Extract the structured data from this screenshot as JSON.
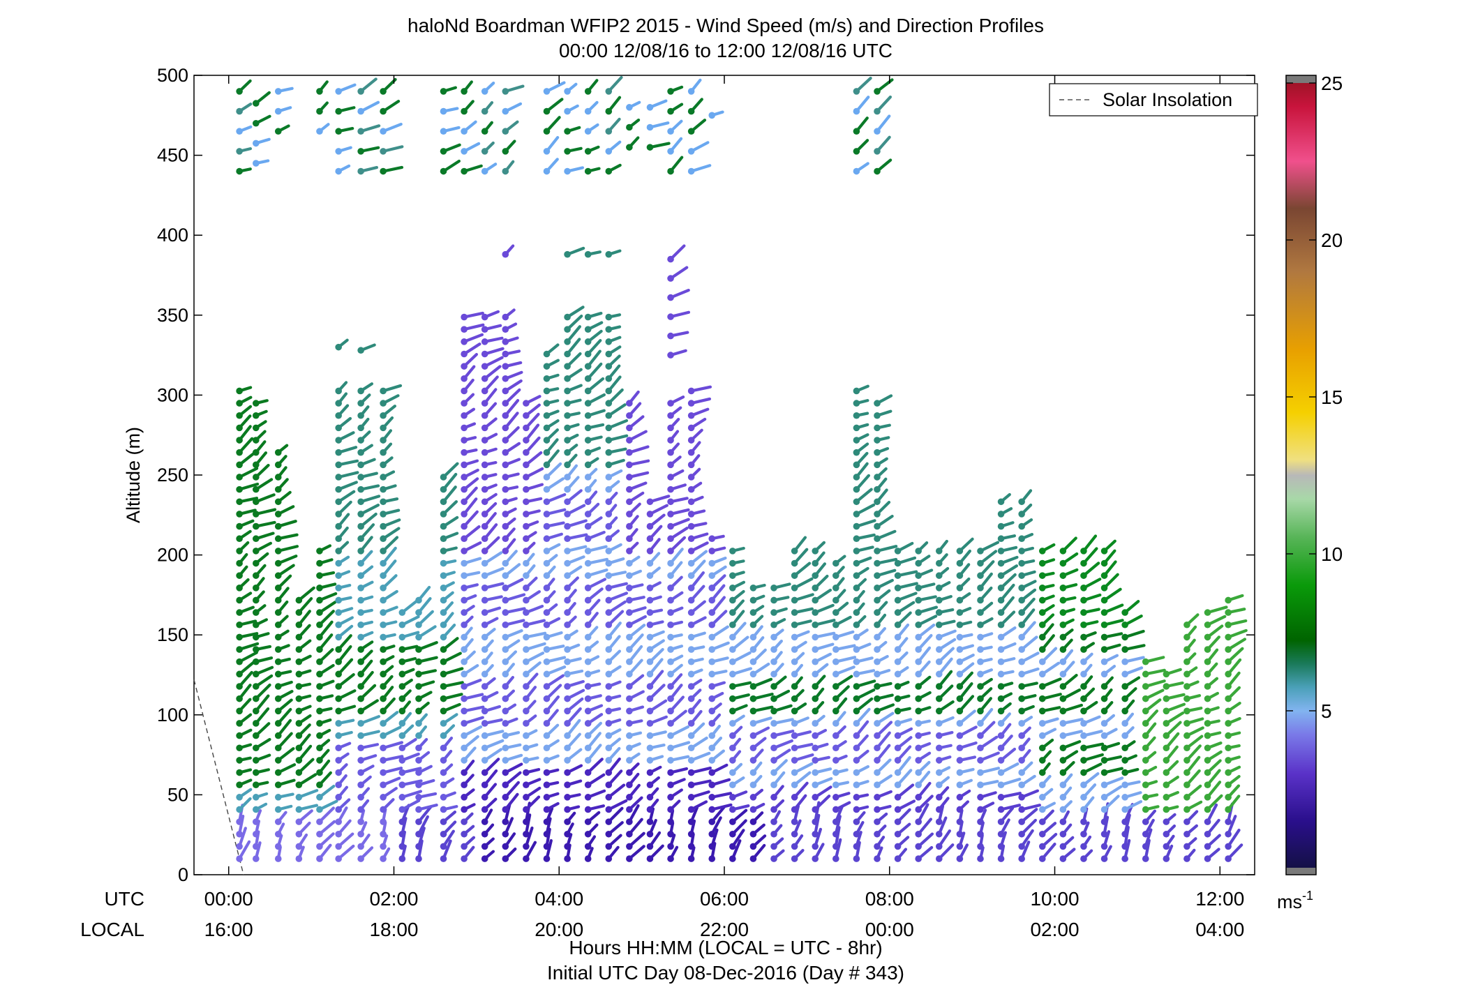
{
  "chart_data": {
    "type": "wind-barb-profile",
    "title": "haloNd Boardman WFIP2 2015 - Wind Speed (m/s) and Direction Profiles",
    "subtitle": "00:00 12/08/16 to 12:00 12/08/16  UTC",
    "ylabel": "Altitude (m)",
    "xlabel": "Hours HH:MM  (LOCAL = UTC - 8hr)",
    "xlabel2": "Initial UTC Day 08-Dec-2016 (Day # 343)",
    "utc_row_label": "UTC",
    "local_row_label": "LOCAL",
    "xlim": [
      -0.42,
      12.42
    ],
    "ylim": [
      0,
      500
    ],
    "y_ticks": [
      "0",
      "50",
      "100",
      "150",
      "200",
      "250",
      "300",
      "350",
      "400",
      "450",
      "500"
    ],
    "x_ticks_utc": [
      "00:00",
      "02:00",
      "04:00",
      "06:00",
      "08:00",
      "10:00",
      "12:00"
    ],
    "x_ticks_local": [
      "16:00",
      "18:00",
      "20:00",
      "22:00",
      "00:00",
      "02:00",
      "04:00"
    ],
    "legend": {
      "label": "Solar Insolation",
      "position": "top-right"
    },
    "solar_insolation": [
      [
        -0.42,
        122
      ],
      [
        0.18,
        0
      ]
    ],
    "colorbar": {
      "range": [
        0,
        25
      ],
      "ticks": [
        "5",
        "10",
        "15",
        "20",
        "25"
      ],
      "unit_label": "ms",
      "unit_exponent": "-1"
    },
    "wind_columns": [
      {
        "t": 0.13,
        "from": 10,
        "to": 305,
        "top": [
          440,
          490
        ]
      },
      {
        "t": 0.33,
        "from": 10,
        "to": 295,
        "top": [
          445,
          492
        ]
      },
      {
        "t": 0.6,
        "from": 10,
        "to": 270,
        "top": [
          465,
          492
        ]
      },
      {
        "t": 0.85,
        "from": 10,
        "to": 175
      },
      {
        "t": 1.1,
        "from": 10,
        "to": 205,
        "top": [
          465,
          492
        ]
      },
      {
        "t": 1.33,
        "from": 10,
        "to": 305,
        "top": [
          440,
          490
        ],
        "mid": [
          330,
          340
        ]
      },
      {
        "t": 1.6,
        "from": 10,
        "to": 305,
        "top": [
          440,
          490
        ],
        "mid": [
          328,
          328
        ]
      },
      {
        "t": 1.87,
        "from": 10,
        "to": 305,
        "top": [
          440,
          490
        ]
      },
      {
        "t": 2.1,
        "from": 10,
        "to": 165
      },
      {
        "t": 2.3,
        "from": 10,
        "to": 175
      },
      {
        "t": 2.6,
        "from": 10,
        "to": 250,
        "top": [
          440,
          490
        ]
      },
      {
        "t": 2.85,
        "from": 10,
        "to": 350,
        "top": [
          440,
          490
        ]
      },
      {
        "t": 3.1,
        "from": 10,
        "to": 350,
        "top": [
          440,
          490
        ]
      },
      {
        "t": 3.35,
        "from": 10,
        "to": 350,
        "top": [
          440,
          490
        ],
        "mid": [
          388,
          388
        ]
      },
      {
        "t": 3.6,
        "from": 10,
        "to": 295
      },
      {
        "t": 3.85,
        "from": 10,
        "to": 330,
        "top": [
          440,
          490
        ]
      },
      {
        "t": 4.1,
        "from": 10,
        "to": 350,
        "top": [
          440,
          490
        ],
        "mid": [
          388,
          388
        ]
      },
      {
        "t": 4.35,
        "from": 10,
        "to": 350,
        "top": [
          440,
          490
        ],
        "mid": [
          388,
          388
        ]
      },
      {
        "t": 4.6,
        "from": 10,
        "to": 350,
        "top": [
          440,
          490
        ],
        "mid": [
          388,
          388
        ]
      },
      {
        "t": 4.85,
        "from": 10,
        "to": 295,
        "top": [
          455,
          490
        ]
      },
      {
        "t": 5.1,
        "from": 10,
        "to": 240,
        "top": [
          455,
          490
        ]
      },
      {
        "t": 5.35,
        "from": 10,
        "to": 300,
        "top": [
          440,
          490
        ],
        "mid": [
          325,
          388
        ]
      },
      {
        "t": 5.6,
        "from": 10,
        "to": 305,
        "top": [
          440,
          490
        ]
      },
      {
        "t": 5.85,
        "from": 10,
        "to": 215,
        "top": [
          475,
          475
        ]
      },
      {
        "t": 6.1,
        "from": 10,
        "to": 205
      },
      {
        "t": 6.35,
        "from": 10,
        "to": 180
      },
      {
        "t": 6.6,
        "from": 10,
        "to": 180
      },
      {
        "t": 6.85,
        "from": 10,
        "to": 205
      },
      {
        "t": 7.1,
        "from": 10,
        "to": 205
      },
      {
        "t": 7.35,
        "from": 10,
        "to": 200
      },
      {
        "t": 7.6,
        "from": 10,
        "to": 305,
        "top": [
          440,
          490
        ]
      },
      {
        "t": 7.85,
        "from": 10,
        "to": 300,
        "top": [
          440,
          490
        ]
      },
      {
        "t": 8.1,
        "from": 10,
        "to": 205
      },
      {
        "t": 8.35,
        "from": 10,
        "to": 205
      },
      {
        "t": 8.6,
        "from": 10,
        "to": 210
      },
      {
        "t": 8.85,
        "from": 10,
        "to": 210
      },
      {
        "t": 9.1,
        "from": 10,
        "to": 210
      },
      {
        "t": 9.35,
        "from": 10,
        "to": 235
      },
      {
        "t": 9.6,
        "from": 10,
        "to": 235
      },
      {
        "t": 9.85,
        "from": 10,
        "to": 205
      },
      {
        "t": 10.1,
        "from": 10,
        "to": 205
      },
      {
        "t": 10.35,
        "from": 10,
        "to": 205
      },
      {
        "t": 10.6,
        "from": 10,
        "to": 205
      },
      {
        "t": 10.85,
        "from": 10,
        "to": 170
      },
      {
        "t": 11.1,
        "from": 10,
        "to": 135
      },
      {
        "t": 11.35,
        "from": 10,
        "to": 130
      },
      {
        "t": 11.6,
        "from": 10,
        "to": 160
      },
      {
        "t": 11.85,
        "from": 10,
        "to": 170
      },
      {
        "t": 12.1,
        "from": 10,
        "to": 175
      }
    ]
  }
}
